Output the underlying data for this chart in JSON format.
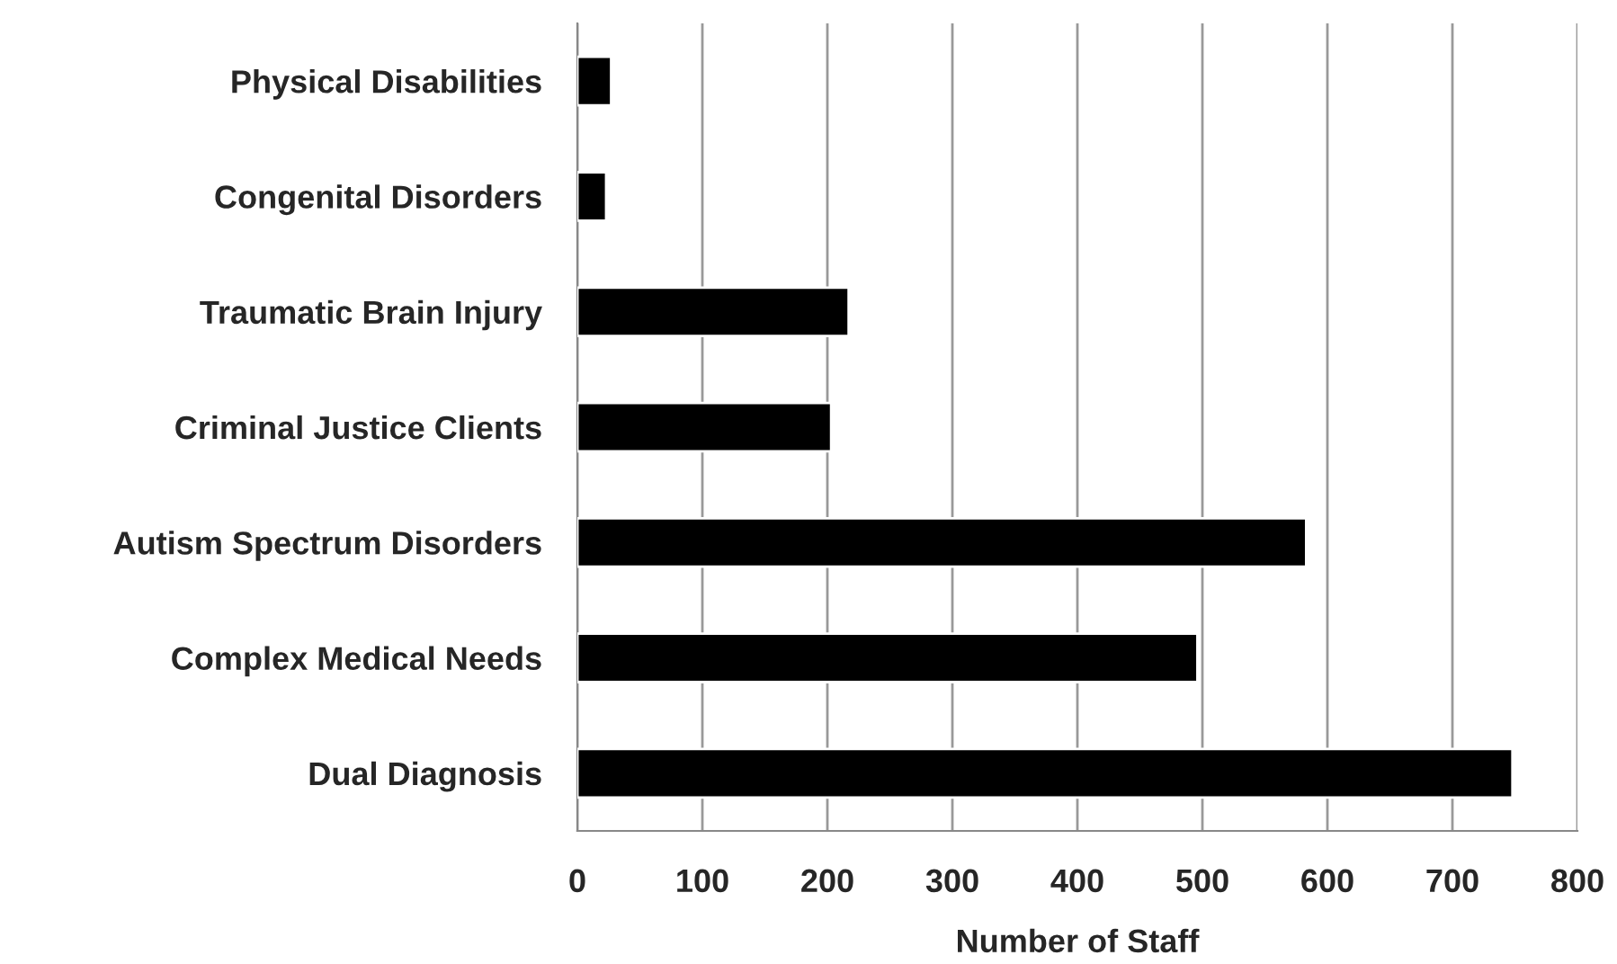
{
  "chart_data": {
    "type": "bar",
    "orientation": "horizontal",
    "xlabel": "Number of Staff",
    "categories": [
      "Physical Disabilities",
      "Congenital Disorders",
      "Traumatic Brain Injury",
      "Criminal Justice Clients",
      "Autism Spectrum Disorders",
      "Complex Medical Needs",
      "Dual Diagnosis"
    ],
    "values": [
      27,
      23,
      217,
      203,
      583,
      496,
      748
    ],
    "color": "#000000",
    "xlim": [
      0,
      800
    ],
    "xticks": [
      0,
      100,
      200,
      300,
      400,
      500,
      600,
      700,
      800
    ],
    "grid": "x",
    "legend": false
  }
}
